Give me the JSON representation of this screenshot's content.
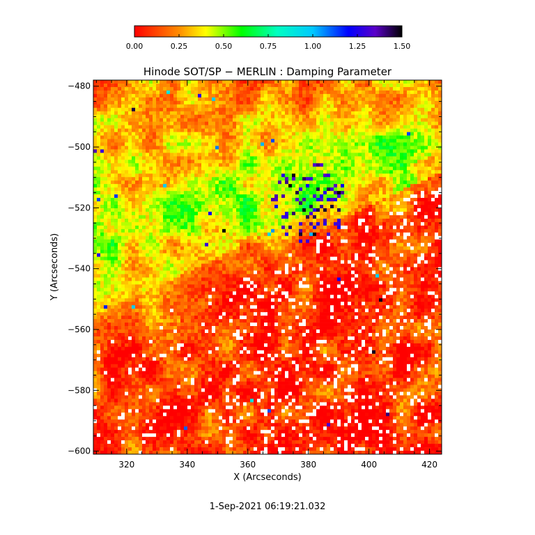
{
  "chart_data": {
    "type": "heatmap",
    "title": "Hinode SOT/SP − MERLIN : Damping Parameter",
    "xlabel": "X (Arcseconds)",
    "ylabel": "Y (Arcseconds)",
    "timestamp": "1-Sep-2021 06:19:21.032",
    "xlim": [
      309,
      424
    ],
    "ylim": [
      -601,
      -478
    ],
    "x_ticks": [
      320,
      340,
      360,
      380,
      400,
      420
    ],
    "x_tick_labels": [
      "320",
      "340",
      "360",
      "380",
      "400",
      "420"
    ],
    "y_ticks": [
      -480,
      -500,
      -520,
      -540,
      -560,
      -580,
      -600
    ],
    "y_tick_labels": [
      "−480",
      "−500",
      "−520",
      "−540",
      "−560",
      "−580",
      "−600"
    ],
    "colorbar": {
      "range": [
        0.0,
        1.5
      ],
      "ticks": [
        0.0,
        0.25,
        0.5,
        0.75,
        1.0,
        1.25,
        1.5
      ],
      "tick_labels": [
        "0.00",
        "0.25",
        "0.50",
        "0.75",
        "1.00",
        "1.25",
        "1.50"
      ],
      "colormap_stops": [
        {
          "value": 0.0,
          "color": "#ff0000"
        },
        {
          "value": 0.25,
          "color": "#ff8c00"
        },
        {
          "value": 0.4,
          "color": "#ffff00"
        },
        {
          "value": 0.6,
          "color": "#00ff00"
        },
        {
          "value": 0.8,
          "color": "#00ffc0"
        },
        {
          "value": 1.0,
          "color": "#00c8ff"
        },
        {
          "value": 1.2,
          "color": "#0000ff"
        },
        {
          "value": 1.35,
          "color": "#5a00c8"
        },
        {
          "value": 1.5,
          "color": "#000000"
        }
      ]
    },
    "grid": false,
    "missing_value_color": "#ffffff"
  }
}
